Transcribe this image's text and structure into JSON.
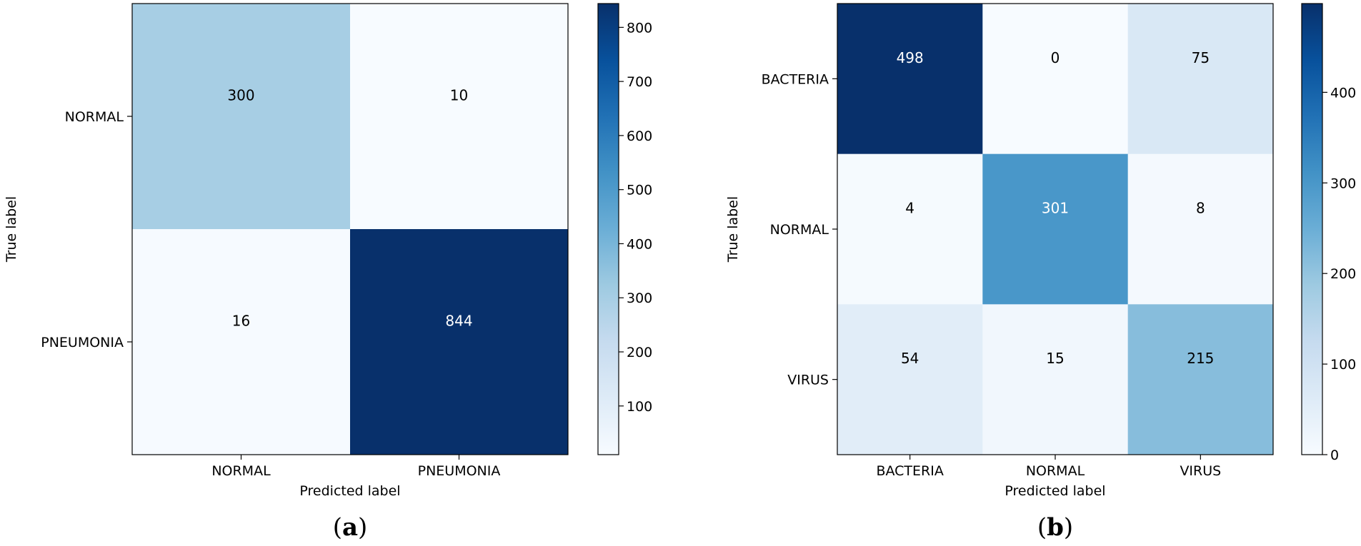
{
  "chart_data": [
    {
      "type": "heatmap",
      "panel_label": {
        "open": "(",
        "letter": "a",
        "close": ")"
      },
      "xlabel": "Predicted label",
      "ylabel": "True label",
      "x_categories": [
        "NORMAL",
        "PNEUMONIA"
      ],
      "y_categories": [
        "NORMAL",
        "PNEUMONIA"
      ],
      "matrix": [
        [
          300,
          10
        ],
        [
          16,
          844
        ]
      ],
      "colorbar": {
        "min": 10,
        "max": 844,
        "ticks": [
          100,
          200,
          300,
          400,
          500,
          600,
          700,
          800
        ]
      },
      "colormap": "Blues"
    },
    {
      "type": "heatmap",
      "panel_label": {
        "open": "(",
        "letter": "b",
        "close": ")"
      },
      "xlabel": "Predicted label",
      "ylabel": "True label",
      "x_categories": [
        "BACTERIA",
        "NORMAL",
        "VIRUS"
      ],
      "y_categories": [
        "BACTERIA",
        "NORMAL",
        "VIRUS"
      ],
      "matrix": [
        [
          498,
          0,
          75
        ],
        [
          4,
          301,
          8
        ],
        [
          54,
          15,
          215
        ]
      ],
      "colorbar": {
        "min": 0,
        "max": 498,
        "ticks": [
          0,
          100,
          200,
          300,
          400
        ]
      },
      "colormap": "Blues"
    }
  ]
}
